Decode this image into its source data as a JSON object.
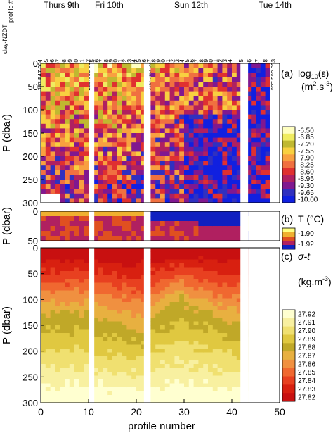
{
  "chart_data": [
    {
      "type": "heatmap",
      "panel_label": "(a)",
      "quantity": "log",
      "quantity_sub": "10",
      "quantity_arg": "(ε)",
      "units": "(m",
      "units_exp1": "2",
      "units_mid": ".s",
      "units_exp2": "-3",
      "units_end": ")",
      "ylabel": "P (dbar)",
      "ylim": [
        0,
        300
      ],
      "yticks": [
        "0",
        "50",
        "100",
        "150",
        "200",
        "250",
        "300"
      ],
      "colorbar": {
        "levels": [
          "-6.50",
          "-6.85",
          "-7.20",
          "-7.55",
          "-7.90",
          "-8.25",
          "-8.60",
          "-8.95",
          "-9.30",
          "-9.65",
          "-10.00"
        ],
        "colors": [
          "#ffffc0",
          "#f0ec60",
          "#c0b830",
          "#f8d040",
          "#f8a040",
          "#f07040",
          "#e03030",
          "#b02060",
          "#801890",
          "#3030c0",
          "#1020e0"
        ]
      }
    },
    {
      "type": "heatmap",
      "panel_label": "(b)",
      "quantity": "T (°C)",
      "ylabel": "P (dbar)",
      "ylim": [
        0,
        50
      ],
      "yticks": [
        "0",
        "50"
      ],
      "colorbar": {
        "levels": [
          "-1.90",
          "-1.92"
        ],
        "colors": [
          "#ffff80",
          "#f0b030",
          "#e05020",
          "#b02060",
          "#1020c0"
        ]
      }
    },
    {
      "type": "heatmap",
      "panel_label": "(c)",
      "quantity": "σ-t",
      "units": "(kg.m",
      "units_exp": "-3",
      "units_end": ")",
      "ylabel": "P (dbar)",
      "ylim": [
        0,
        300
      ],
      "yticks": [
        "0",
        "50",
        "100",
        "150",
        "200",
        "250",
        "300"
      ],
      "colorbar": {
        "levels": [
          "27.92",
          "27.91",
          "27.90",
          "27.89",
          "27.88",
          "27.87",
          "27.86",
          "27.85",
          "27.84",
          "27.83",
          "27.82"
        ],
        "colors": [
          "#ffffd0",
          "#f8f0a0",
          "#f0e070",
          "#e0c840",
          "#c0a828",
          "#e8b040",
          "#f09040",
          "#f06830",
          "#e84020",
          "#d82010",
          "#c81010"
        ]
      }
    }
  ],
  "xaxis": {
    "label": "profile number",
    "xlim": [
      0,
      50
    ],
    "ticks": [
      "0",
      "10",
      "20",
      "30",
      "40",
      "50"
    ]
  },
  "days": [
    "Thurs 9th",
    "Fri 10th",
    "Sun 12th",
    "Tue 14th"
  ],
  "header_left": "day-NZDT",
  "header_right": "profile #",
  "profiles": [
    {
      "day": "283.547",
      "profile": "004"
    },
    {
      "day": "283.558",
      "profile": "005"
    },
    {
      "day": "283.569",
      "profile": "006"
    },
    {
      "day": "283.580",
      "profile": "007"
    },
    {
      "day": "283.591",
      "profile": "008"
    },
    {
      "day": "283.602",
      "profile": "009"
    },
    {
      "day": "283.613",
      "profile": "010"
    },
    {
      "day": "283.624",
      "profile": "011"
    },
    {
      "day": "283.635",
      "profile": "012"
    },
    {
      "day": "283.500",
      "profile": "015"
    },
    {
      "day": "283.511",
      "profile": "016"
    },
    {
      "day": "283.522",
      "profile": "017"
    },
    {
      "day": "283.533",
      "profile": "018"
    },
    {
      "day": "283.544",
      "profile": "019"
    },
    {
      "day": "283.555",
      "profile": "020"
    },
    {
      "day": "283.566",
      "profile": "021"
    },
    {
      "day": "283.577",
      "profile": "022"
    },
    {
      "day": "283.588",
      "profile": "023"
    },
    {
      "day": "283.599",
      "profile": "024"
    },
    {
      "day": "283.610",
      "profile": "025"
    },
    {
      "day": "285.369",
      "profile": "026"
    },
    {
      "day": "285.380",
      "profile": "027"
    },
    {
      "day": "285.391",
      "profile": "028"
    },
    {
      "day": "285.402",
      "profile": "029"
    },
    {
      "day": "285.413",
      "profile": "030"
    },
    {
      "day": "285.424",
      "profile": "031"
    },
    {
      "day": "285.435",
      "profile": "032"
    },
    {
      "day": "285.446",
      "profile": "033"
    },
    {
      "day": "285.457",
      "profile": "034"
    },
    {
      "day": "285.468",
      "profile": "035"
    },
    {
      "day": "285.479",
      "profile": "036"
    },
    {
      "day": "285.490",
      "profile": "037"
    },
    {
      "day": "285.501",
      "profile": "038"
    },
    {
      "day": "285.512",
      "profile": "039"
    },
    {
      "day": "285.523",
      "profile": "040"
    },
    {
      "day": "285.534",
      "profile": "041"
    },
    {
      "day": "285.545",
      "profile": "042"
    },
    {
      "day": "285.556",
      "profile": "043"
    },
    {
      "day": "285.567",
      "profile": "044"
    },
    {
      "day": "287.439",
      "profile": "045"
    },
    {
      "day": "287.450",
      "profile": "046"
    },
    {
      "day": "287.461",
      "profile": "047"
    },
    {
      "day": "287.472",
      "profile": "048"
    },
    {
      "day": "287.500",
      "profile": "053"
    }
  ]
}
